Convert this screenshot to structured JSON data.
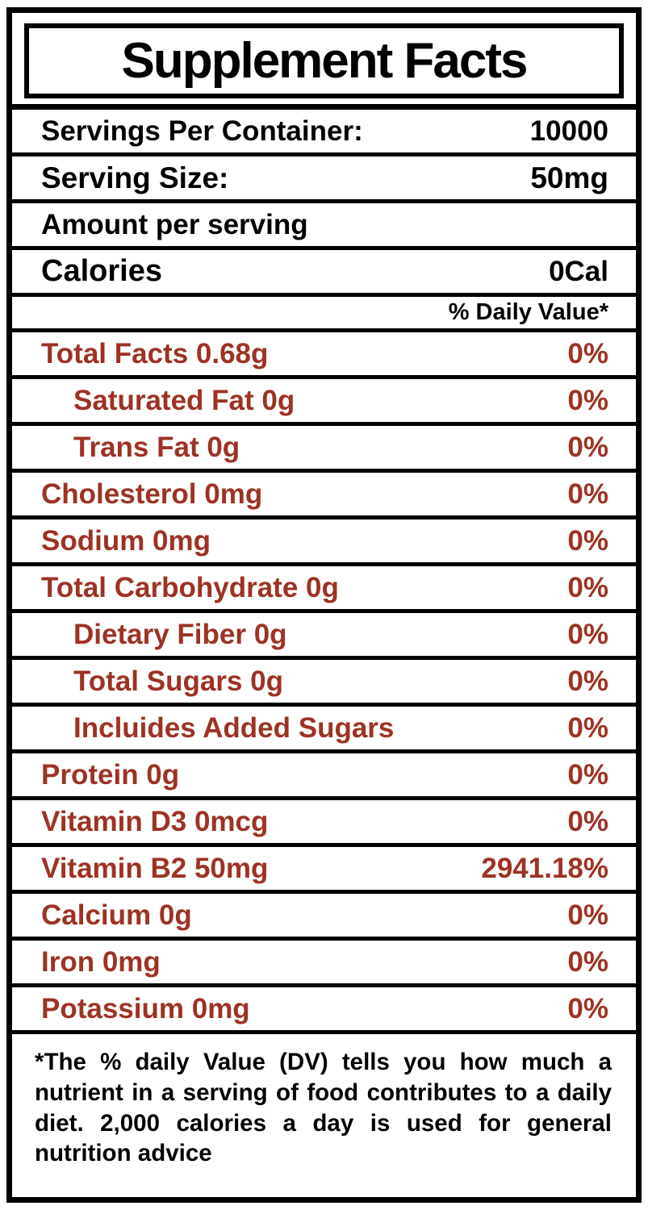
{
  "label": {
    "title": "Supplement Facts",
    "servings_row": {
      "label": "Servings Per Container:",
      "value": "10000"
    },
    "serving_size_row": {
      "label": "Serving Size:",
      "value": "50mg"
    },
    "amount_row": {
      "label": "Amount per serving"
    },
    "calories_row": {
      "label": "Calories",
      "value": "0Cal"
    },
    "daily_value_header": "% Daily Value*",
    "nutrients": [
      {
        "label": "Total Facts 0.68g",
        "value": "0%"
      },
      {
        "label": "Saturated Fat 0g",
        "value": "0%"
      },
      {
        "label": "Trans Fat 0g",
        "value": "0%"
      },
      {
        "label": "Cholesterol 0mg",
        "value": "0%"
      },
      {
        "label": "Sodium 0mg",
        "value": "0%"
      },
      {
        "label": "Total Carbohydrate 0g",
        "value": "0%"
      },
      {
        "label": "Dietary Fiber 0g",
        "value": "0%"
      },
      {
        "label": "Total Sugars 0g",
        "value": "0%"
      },
      {
        "label": "Incluides Added Sugars",
        "value": "0%"
      },
      {
        "label": "Protein 0g",
        "value": "0%"
      },
      {
        "label": "Vitamin D3 0mcg",
        "value": "0%"
      },
      {
        "label": "Vitamin B2 50mg",
        "value": "2941.18%"
      },
      {
        "label": "Calcium 0g",
        "value": "0%"
      },
      {
        "label": "Iron 0mg",
        "value": "0%"
      },
      {
        "label": "Potassium 0mg",
        "value": "0%"
      }
    ],
    "footnote": "*The % daily Value (DV) tells you how much a nutrient in a serving of food contributes to a daily diet. 2,000 calories a day  is used for general nutrition advice"
  },
  "colors": {
    "nutrient_text": "#9d3224",
    "border": "#000000",
    "background": "#ffffff"
  }
}
